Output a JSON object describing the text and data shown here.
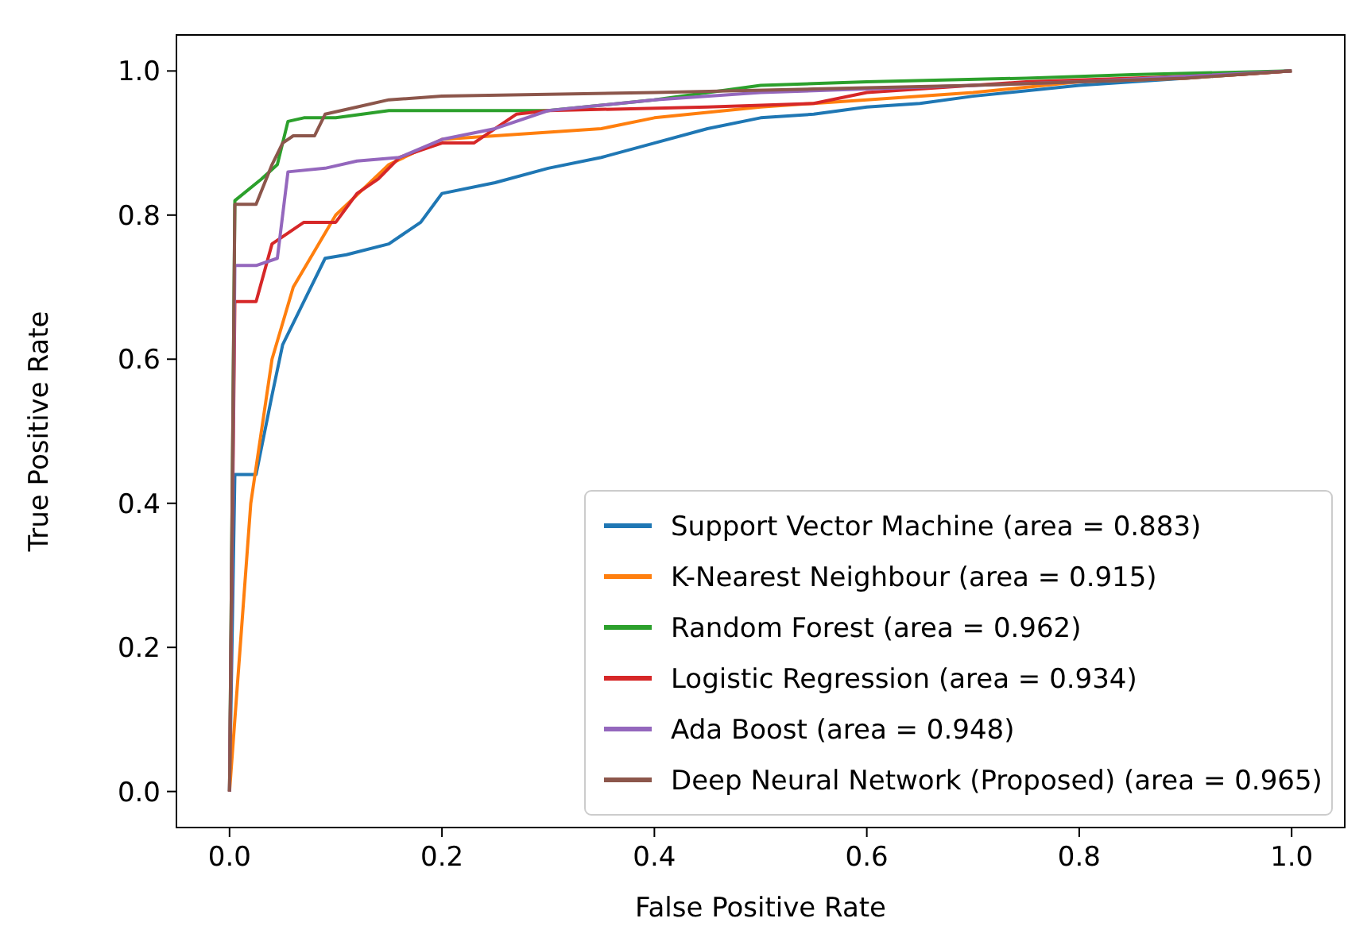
{
  "chart_data": {
    "type": "line",
    "xlabel": "False Positive Rate",
    "ylabel": "True Positive Rate",
    "xlim": [
      -0.05,
      1.05
    ],
    "ylim": [
      -0.05,
      1.05
    ],
    "xticks": [
      {
        "value": 0,
        "label": "0.0"
      },
      {
        "value": 0.2,
        "label": "0.2"
      },
      {
        "value": 0.4,
        "label": "0.4"
      },
      {
        "value": 0.6,
        "label": "0.6"
      },
      {
        "value": 0.8,
        "label": "0.8"
      },
      {
        "value": 1,
        "label": "1.0"
      }
    ],
    "yticks": [
      {
        "value": 0,
        "label": "0.0"
      },
      {
        "value": 0.2,
        "label": "0.2"
      },
      {
        "value": 0.4,
        "label": "0.4"
      },
      {
        "value": 0.6,
        "label": "0.6"
      },
      {
        "value": 0.8,
        "label": "0.8"
      },
      {
        "value": 1,
        "label": "1.0"
      }
    ],
    "legend": "bottom right",
    "grid": false,
    "marker": "none",
    "line_style": "solid",
    "series": [
      {
        "name": "Support Vector Machine (area = 0.883)",
        "color": "#1f77b4",
        "x": [
          0,
          0.005,
          0.025,
          0.04,
          0.05,
          0.07,
          0.09,
          0.11,
          0.15,
          0.18,
          0.2,
          0.25,
          0.3,
          0.35,
          0.4,
          0.45,
          0.5,
          0.55,
          0.6,
          0.65,
          0.7,
          0.8,
          0.9,
          1
        ],
        "values": [
          0,
          0.44,
          0.44,
          0.55,
          0.62,
          0.68,
          0.74,
          0.745,
          0.76,
          0.79,
          0.83,
          0.845,
          0.865,
          0.88,
          0.9,
          0.92,
          0.935,
          0.94,
          0.95,
          0.955,
          0.965,
          0.98,
          0.99,
          1
        ]
      },
      {
        "name": "K-Nearest Neighbour (area = 0.915)",
        "color": "#ff7f0e",
        "x": [
          0,
          0.02,
          0.04,
          0.06,
          0.1,
          0.15,
          0.2,
          0.3,
          0.35,
          0.4,
          0.5,
          0.6,
          0.7,
          0.8,
          0.9,
          1
        ],
        "values": [
          0,
          0.4,
          0.6,
          0.7,
          0.8,
          0.87,
          0.905,
          0.915,
          0.92,
          0.935,
          0.95,
          0.96,
          0.97,
          0.985,
          0.99,
          1
        ]
      },
      {
        "name": "Random Forest (area = 0.962)",
        "color": "#2ca02c",
        "x": [
          0,
          0.005,
          0.03,
          0.045,
          0.055,
          0.07,
          0.1,
          0.15,
          0.3,
          0.4,
          0.5,
          0.6,
          0.75,
          0.85,
          1
        ],
        "values": [
          0,
          0.82,
          0.85,
          0.87,
          0.93,
          0.935,
          0.935,
          0.945,
          0.945,
          0.96,
          0.98,
          0.985,
          0.99,
          0.995,
          1
        ]
      },
      {
        "name": "Logistic Regression (area = 0.934)",
        "color": "#d62728",
        "x": [
          0,
          0.005,
          0.025,
          0.04,
          0.07,
          0.1,
          0.12,
          0.14,
          0.16,
          0.2,
          0.23,
          0.27,
          0.3,
          0.45,
          0.55,
          0.6,
          0.75,
          0.95,
          1
        ],
        "values": [
          0,
          0.68,
          0.68,
          0.76,
          0.79,
          0.79,
          0.83,
          0.85,
          0.88,
          0.9,
          0.9,
          0.94,
          0.945,
          0.95,
          0.955,
          0.97,
          0.985,
          0.995,
          1
        ]
      },
      {
        "name": "Ada Boost (area = 0.948)",
        "color": "#9467bd",
        "x": [
          0,
          0.005,
          0.025,
          0.045,
          0.055,
          0.09,
          0.12,
          0.16,
          0.2,
          0.25,
          0.3,
          0.4,
          0.5,
          0.6,
          0.7,
          0.8,
          1
        ],
        "values": [
          0,
          0.73,
          0.73,
          0.74,
          0.86,
          0.865,
          0.875,
          0.88,
          0.905,
          0.92,
          0.945,
          0.96,
          0.97,
          0.975,
          0.98,
          0.985,
          1
        ]
      },
      {
        "name": "Deep Neural Network (Proposed) (area = 0.965)",
        "color": "#8c564b",
        "x": [
          0,
          0.005,
          0.025,
          0.04,
          0.05,
          0.06,
          0.08,
          0.09,
          0.12,
          0.15,
          0.2,
          0.4,
          0.55,
          0.7,
          0.9,
          1
        ],
        "values": [
          0,
          0.815,
          0.815,
          0.87,
          0.9,
          0.91,
          0.91,
          0.94,
          0.95,
          0.96,
          0.965,
          0.97,
          0.975,
          0.98,
          0.99,
          1
        ]
      }
    ]
  }
}
